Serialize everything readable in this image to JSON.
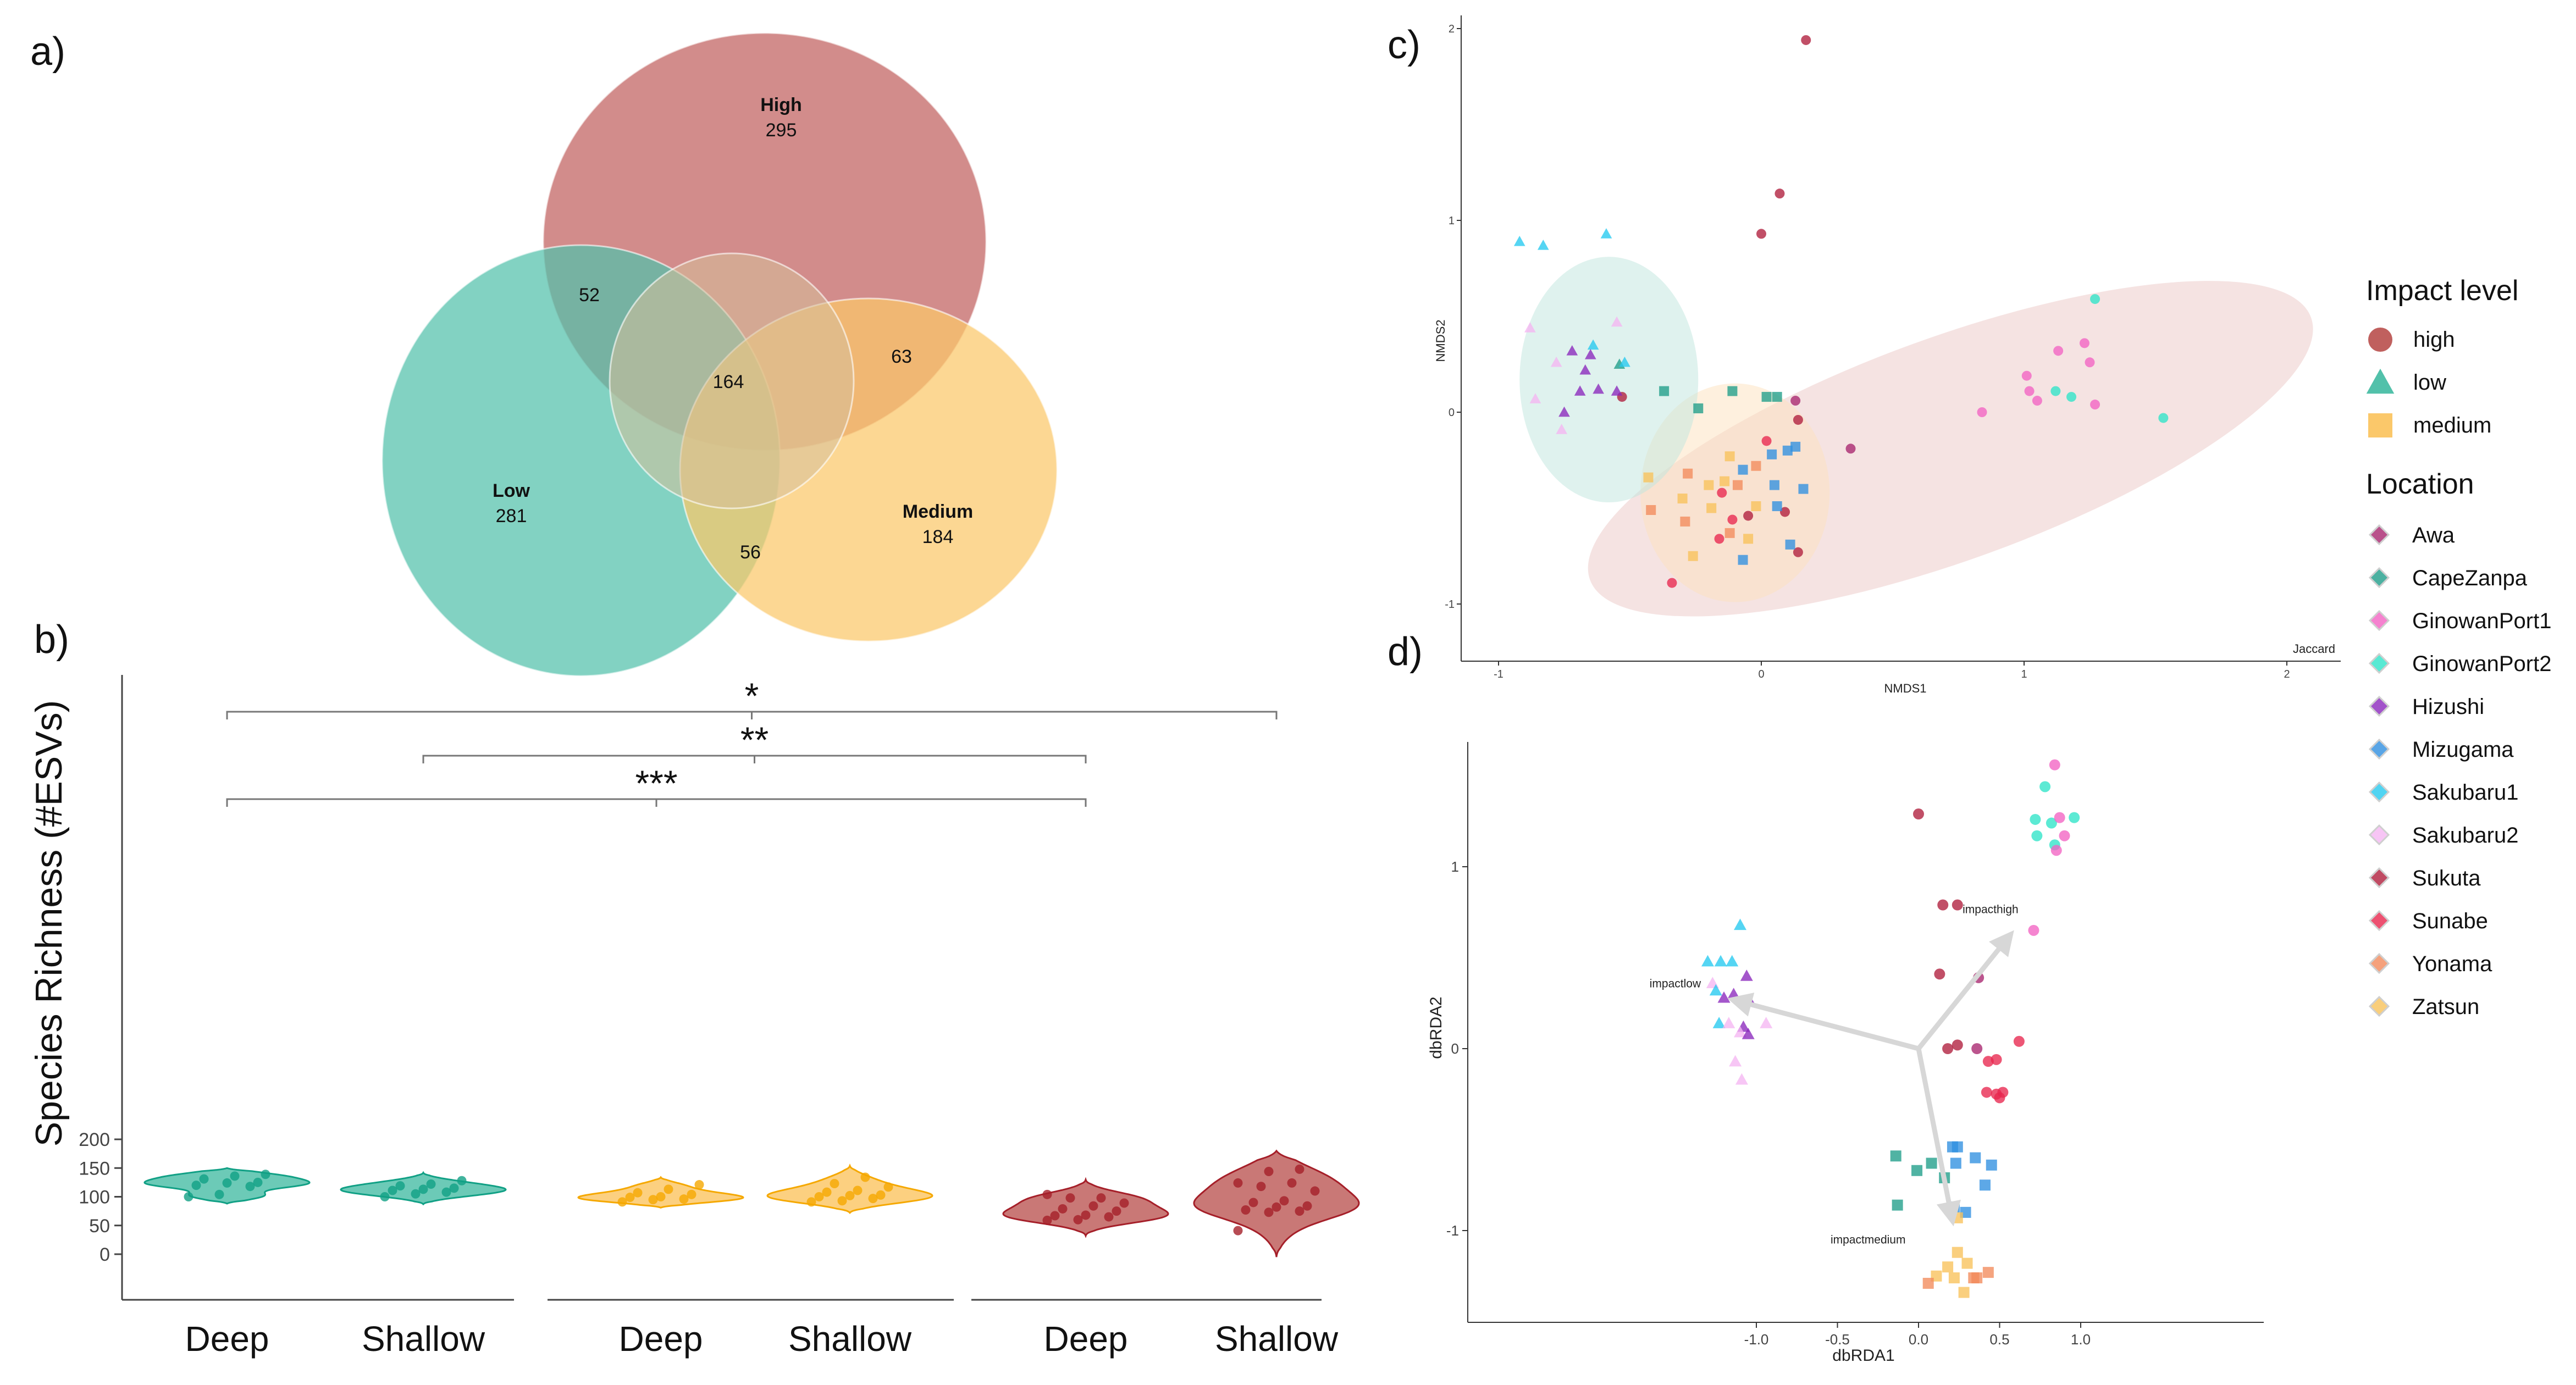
{
  "panels": {
    "a": "a)",
    "b": "b)",
    "c": "c)",
    "d": "d)"
  },
  "colors": {
    "high": "#c0605e",
    "low": "#52c1aa",
    "medium": "#fbc86a",
    "high_dark": "#a51f29",
    "low_dark": "#11a085",
    "medium_dark": "#f5a800"
  },
  "chart_data": [
    {
      "type": "venn",
      "sets": [
        {
          "name": "High",
          "value": "295",
          "color": "#c0605e"
        },
        {
          "name": "Low",
          "value": "281",
          "color": "#52c1aa"
        },
        {
          "name": "Medium",
          "value": "184",
          "color": "#fbc86a"
        }
      ],
      "intersections": {
        "High&Low": "52",
        "High&Medium": "63",
        "Low&Medium": "56",
        "High&Low&Medium": "164"
      }
    },
    {
      "type": "violin",
      "ylabel": "Species Richness (#ESVs)",
      "ylim": [
        0,
        200
      ],
      "yticks": [
        0,
        50,
        100,
        150,
        200
      ],
      "groups": [
        {
          "label": "Deep",
          "impact": "low",
          "range": [
            88,
            150
          ],
          "points": [
            100,
            104,
            118,
            120,
            124,
            125,
            131,
            136,
            139
          ]
        },
        {
          "label": "Shallow",
          "impact": "low",
          "range": [
            87,
            142
          ],
          "points": [
            100,
            105,
            108,
            111,
            113,
            115,
            119,
            122,
            128
          ]
        },
        {
          "label": "Deep",
          "impact": "medium",
          "range": [
            81,
            134
          ],
          "points": [
            91,
            95,
            96,
            99,
            100,
            104,
            107,
            113,
            121
          ]
        },
        {
          "label": "Shallow",
          "impact": "medium",
          "range": [
            72,
            154
          ],
          "points": [
            91,
            93,
            97,
            100,
            102,
            103,
            108,
            111,
            117,
            123,
            134
          ]
        },
        {
          "label": "Deep",
          "impact": "high",
          "range": [
            32,
            130
          ],
          "points": [
            59,
            60,
            65,
            67,
            68,
            75,
            79,
            84,
            89,
            98,
            98,
            104
          ]
        },
        {
          "label": "Shallow",
          "impact": "high",
          "range": [
            -5,
            180
          ],
          "points": [
            41,
            73,
            75,
            77,
            82,
            84,
            90,
            93,
            110,
            118,
            124,
            124,
            144,
            148
          ]
        }
      ],
      "significance": [
        {
          "label": "*",
          "from": 0,
          "to": 5
        },
        {
          "label": "**",
          "from": 1,
          "to": 4
        },
        {
          "label": "***",
          "from": 0,
          "to": 4
        }
      ]
    },
    {
      "type": "scatter",
      "method": "Jaccard",
      "xlabel": "NMDS1",
      "ylabel": "NMDS2",
      "xlim": [
        -1.15,
        2.2
      ],
      "ylim": [
        -1.2,
        2.05
      ],
      "xticks": [
        -1,
        0,
        1,
        2
      ],
      "yticks": [
        -1,
        0,
        1,
        2
      ],
      "ellipses": [
        {
          "impact": "low",
          "cx": -0.58,
          "cy": 0.17,
          "rx": 0.34,
          "ry": 0.64,
          "angle": 0
        },
        {
          "impact": "medium",
          "cx": -0.1,
          "cy": -0.42,
          "rx": 0.36,
          "ry": 0.57,
          "angle": 0
        },
        {
          "impact": "high",
          "cx": 0.72,
          "cy": -0.19,
          "rx": 1.46,
          "ry": 0.58,
          "angle": 20
        }
      ],
      "points": [
        [
          0.17,
          1.94,
          "high",
          "Sukuta"
        ],
        [
          0.07,
          1.14,
          "high",
          "Sukuta"
        ],
        [
          0.0,
          0.93,
          "high",
          "Sukuta"
        ],
        [
          -0.53,
          0.08,
          "high",
          "Sukuta"
        ],
        [
          0.13,
          0.06,
          "high",
          "Awa"
        ],
        [
          0.34,
          -0.19,
          "high",
          "Awa"
        ],
        [
          0.14,
          -0.04,
          "high",
          "Sukuta"
        ],
        [
          0.02,
          -0.15,
          "high",
          "Sunabe"
        ],
        [
          -0.15,
          -0.42,
          "high",
          "Sunabe"
        ],
        [
          -0.11,
          -0.56,
          "high",
          "Sunabe"
        ],
        [
          0.14,
          -0.73,
          "high",
          "Sukuta"
        ],
        [
          -0.05,
          -0.54,
          "high",
          "Sukuta"
        ],
        [
          -0.16,
          -0.66,
          "high",
          "Sunabe"
        ],
        [
          -0.34,
          -0.89,
          "high",
          "Sunabe"
        ],
        [
          0.09,
          -0.52,
          "high",
          "Sukuta"
        ],
        [
          1.27,
          0.59,
          "high",
          "GinowanPort2"
        ],
        [
          1.23,
          0.36,
          "high",
          "GinowanPort1"
        ],
        [
          1.13,
          0.32,
          "high",
          "GinowanPort1"
        ],
        [
          1.25,
          0.26,
          "high",
          "GinowanPort1"
        ],
        [
          1.01,
          0.19,
          "high",
          "GinowanPort1"
        ],
        [
          1.12,
          0.11,
          "high",
          "GinowanPort2"
        ],
        [
          1.02,
          0.11,
          "high",
          "GinowanPort1"
        ],
        [
          0.84,
          0.0,
          "high",
          "GinowanPort1"
        ],
        [
          1.05,
          0.06,
          "high",
          "GinowanPort1"
        ],
        [
          1.27,
          0.04,
          "high",
          "GinowanPort1"
        ],
        [
          1.18,
          0.08,
          "high",
          "GinowanPort2"
        ],
        [
          1.53,
          -0.03,
          "high",
          "GinowanPort2"
        ],
        [
          -0.92,
          0.89,
          "low",
          "Sakubaru1"
        ],
        [
          -0.83,
          0.87,
          "low",
          "Sakubaru1"
        ],
        [
          -0.59,
          0.93,
          "low",
          "Sakubaru1"
        ],
        [
          -0.88,
          0.44,
          "low",
          "Sakubaru2"
        ],
        [
          -0.64,
          0.35,
          "low",
          "Sakubaru1"
        ],
        [
          -0.72,
          0.32,
          "low",
          "Hizushi"
        ],
        [
          -0.65,
          0.3,
          "low",
          "Hizushi"
        ],
        [
          -0.55,
          0.47,
          "low",
          "Sakubaru2"
        ],
        [
          -0.54,
          0.25,
          "low",
          "CapeZanpa"
        ],
        [
          -0.67,
          0.22,
          "low",
          "Hizushi"
        ],
        [
          -0.78,
          0.26,
          "low",
          "Sakubaru2"
        ],
        [
          -0.52,
          0.26,
          "low",
          "Sakubaru1"
        ],
        [
          -0.62,
          0.12,
          "low",
          "Hizushi"
        ],
        [
          -0.86,
          0.07,
          "low",
          "Sakubaru2"
        ],
        [
          -0.69,
          0.11,
          "low",
          "Hizushi"
        ],
        [
          -0.55,
          0.11,
          "low",
          "Hizushi"
        ],
        [
          -0.75,
          0.0,
          "low",
          "Hizushi"
        ],
        [
          -0.76,
          -0.09,
          "low",
          "Sakubaru2"
        ],
        [
          -0.37,
          0.11,
          "medium",
          "CapeZanpa"
        ],
        [
          -0.11,
          0.11,
          "medium",
          "CapeZanpa"
        ],
        [
          0.02,
          0.08,
          "medium",
          "CapeZanpa"
        ],
        [
          0.06,
          0.08,
          "medium",
          "CapeZanpa"
        ],
        [
          -0.24,
          0.02,
          "medium",
          "CapeZanpa"
        ],
        [
          -0.12,
          -0.23,
          "medium",
          "Zatsun"
        ],
        [
          0.04,
          -0.22,
          "medium",
          "Mizugama"
        ],
        [
          0.1,
          -0.2,
          "medium",
          "Mizugama"
        ],
        [
          0.13,
          -0.18,
          "medium",
          "Mizugama"
        ],
        [
          -0.07,
          -0.3,
          "medium",
          "Mizugama"
        ],
        [
          -0.28,
          -0.32,
          "medium",
          "Yonama"
        ],
        [
          -0.43,
          -0.34,
          "medium",
          "Zatsun"
        ],
        [
          -0.2,
          -0.38,
          "medium",
          "Zatsun"
        ],
        [
          -0.02,
          -0.28,
          "medium",
          "Yonama"
        ],
        [
          -0.14,
          -0.36,
          "medium",
          "Zatsun"
        ],
        [
          -0.09,
          -0.38,
          "medium",
          "Yonama"
        ],
        [
          0.05,
          -0.38,
          "medium",
          "Mizugama"
        ],
        [
          0.16,
          -0.4,
          "medium",
          "Mizugama"
        ],
        [
          -0.3,
          -0.45,
          "medium",
          "Zatsun"
        ],
        [
          -0.02,
          -0.49,
          "medium",
          "Zatsun"
        ],
        [
          -0.19,
          -0.5,
          "medium",
          "Zatsun"
        ],
        [
          0.06,
          -0.49,
          "medium",
          "Mizugama"
        ],
        [
          -0.42,
          -0.51,
          "medium",
          "Yonama"
        ],
        [
          -0.29,
          -0.57,
          "medium",
          "Yonama"
        ],
        [
          -0.12,
          -0.63,
          "medium",
          "Yonama"
        ],
        [
          -0.05,
          -0.66,
          "medium",
          "Zatsun"
        ],
        [
          0.11,
          -0.69,
          "medium",
          "Mizugama"
        ],
        [
          -0.07,
          -0.77,
          "medium",
          "Mizugama"
        ],
        [
          -0.26,
          -0.75,
          "medium",
          "Zatsun"
        ]
      ]
    },
    {
      "type": "scatter",
      "xlabel": "dbRDA1",
      "ylabel": "dbRDA2",
      "xlim": [
        -1.4,
        1.07
      ],
      "ylim": [
        -1.5,
        1.7
      ],
      "xticks": [
        -1.0,
        -0.5,
        0.0,
        0.5,
        1.0
      ],
      "yticks": [
        -1,
        0,
        1
      ],
      "xtick_labels": [
        "-1.0",
        "-0.5",
        "0.0",
        "0.5",
        "1.0"
      ],
      "vectors": [
        {
          "label": "impacthigh",
          "x": 0.57,
          "y": 0.63
        },
        {
          "label": "impactlow",
          "x": -1.15,
          "y": 0.27
        },
        {
          "label": "impactmedium",
          "x": 0.21,
          "y": -0.95
        }
      ],
      "points": [
        [
          0.0,
          1.29,
          "high",
          "Sukuta"
        ],
        [
          0.15,
          0.79,
          "high",
          "Sukuta"
        ],
        [
          0.24,
          0.79,
          "high",
          "Sukuta"
        ],
        [
          0.71,
          0.65,
          "high",
          "GinowanPort1"
        ],
        [
          0.13,
          0.41,
          "high",
          "Sukuta"
        ],
        [
          0.37,
          0.39,
          "high",
          "Awa"
        ],
        [
          0.18,
          0.0,
          "high",
          "Sukuta"
        ],
        [
          0.24,
          0.02,
          "high",
          "Sukuta"
        ],
        [
          0.62,
          0.04,
          "high",
          "Sunabe"
        ],
        [
          0.36,
          0.0,
          "high",
          "Awa"
        ],
        [
          0.43,
          -0.07,
          "high",
          "Sunabe"
        ],
        [
          0.48,
          -0.06,
          "high",
          "Sunabe"
        ],
        [
          0.42,
          -0.24,
          "high",
          "Sunabe"
        ],
        [
          0.48,
          -0.25,
          "high",
          "Sunabe"
        ],
        [
          0.52,
          -0.24,
          "high",
          "Sunabe"
        ],
        [
          0.5,
          -0.27,
          "high",
          "Sunabe"
        ],
        [
          0.84,
          1.56,
          "high",
          "GinowanPort1"
        ],
        [
          0.78,
          1.44,
          "high",
          "GinowanPort2"
        ],
        [
          0.72,
          1.26,
          "high",
          "GinowanPort2"
        ],
        [
          0.82,
          1.24,
          "high",
          "GinowanPort2"
        ],
        [
          0.87,
          1.27,
          "high",
          "GinowanPort1"
        ],
        [
          0.96,
          1.27,
          "high",
          "GinowanPort2"
        ],
        [
          0.73,
          1.17,
          "high",
          "GinowanPort2"
        ],
        [
          0.84,
          1.12,
          "high",
          "GinowanPort2"
        ],
        [
          0.9,
          1.17,
          "high",
          "GinowanPort1"
        ],
        [
          0.85,
          1.09,
          "high",
          "GinowanPort1"
        ],
        [
          -1.22,
          0.48,
          "low",
          "Sakubaru1"
        ],
        [
          -1.15,
          0.48,
          "low",
          "Sakubaru1"
        ],
        [
          -1.1,
          0.68,
          "low",
          "Sakubaru1"
        ],
        [
          -1.3,
          0.48,
          "low",
          "Sakubaru1"
        ],
        [
          -1.06,
          0.4,
          "low",
          "Hizushi"
        ],
        [
          -1.27,
          0.36,
          "low",
          "Sakubaru2"
        ],
        [
          -1.2,
          0.28,
          "low",
          "Hizushi"
        ],
        [
          -1.25,
          0.32,
          "low",
          "Sakubaru1"
        ],
        [
          -1.14,
          0.3,
          "low",
          "Hizushi"
        ],
        [
          -1.04,
          0.26,
          "low",
          "Hizushi"
        ],
        [
          -1.08,
          0.12,
          "low",
          "Hizushi"
        ],
        [
          -1.23,
          0.14,
          "low",
          "Sakubaru1"
        ],
        [
          -1.17,
          0.14,
          "low",
          "Sakubaru2"
        ],
        [
          -0.94,
          0.14,
          "low",
          "Sakubaru2"
        ],
        [
          -1.1,
          0.09,
          "low",
          "Sakubaru2"
        ],
        [
          -1.05,
          0.08,
          "low",
          "Hizushi"
        ],
        [
          -1.13,
          -0.07,
          "low",
          "Sakubaru2"
        ],
        [
          -1.09,
          -0.17,
          "low",
          "Sakubaru2"
        ],
        [
          -0.14,
          -0.59,
          "medium",
          "CapeZanpa"
        ],
        [
          -0.01,
          -0.67,
          "medium",
          "CapeZanpa"
        ],
        [
          0.08,
          -0.63,
          "medium",
          "CapeZanpa"
        ],
        [
          0.16,
          -0.71,
          "medium",
          "CapeZanpa"
        ],
        [
          0.21,
          -0.54,
          "medium",
          "Mizugama"
        ],
        [
          0.24,
          -0.54,
          "medium",
          "Mizugama"
        ],
        [
          0.35,
          -0.6,
          "medium",
          "Mizugama"
        ],
        [
          0.45,
          -0.64,
          "medium",
          "Mizugama"
        ],
        [
          0.23,
          -0.63,
          "medium",
          "Mizugama"
        ],
        [
          0.41,
          -0.75,
          "medium",
          "Mizugama"
        ],
        [
          0.22,
          -0.87,
          "medium",
          "Mizugama"
        ],
        [
          0.29,
          -0.9,
          "medium",
          "Mizugama"
        ],
        [
          -0.13,
          -0.86,
          "medium",
          "CapeZanpa"
        ],
        [
          0.24,
          -0.93,
          "medium",
          "Zatsun"
        ],
        [
          0.24,
          -1.12,
          "medium",
          "Zatsun"
        ],
        [
          0.3,
          -1.18,
          "medium",
          "Zatsun"
        ],
        [
          0.11,
          -1.25,
          "medium",
          "Zatsun"
        ],
        [
          0.18,
          -1.2,
          "medium",
          "Zatsun"
        ],
        [
          0.06,
          -1.29,
          "medium",
          "Yonama"
        ],
        [
          0.22,
          -1.26,
          "medium",
          "Zatsun"
        ],
        [
          0.36,
          -1.26,
          "medium",
          "Yonama"
        ],
        [
          0.43,
          -1.23,
          "medium",
          "Yonama"
        ],
        [
          0.28,
          -1.34,
          "medium",
          "Zatsun"
        ],
        [
          0.34,
          -1.26,
          "medium",
          "Yonama"
        ]
      ]
    }
  ],
  "legend": {
    "impact_title": "Impact level",
    "impact_items": [
      {
        "label": "high",
        "shape": "circle",
        "color": "#c0605e"
      },
      {
        "label": "low",
        "shape": "triangle",
        "color": "#52c1aa"
      },
      {
        "label": "medium",
        "shape": "square",
        "color": "#fbc86a"
      }
    ],
    "location_title": "Location",
    "location_items": [
      {
        "label": "Awa",
        "color": "#a8256e"
      },
      {
        "label": "CapeZanpa",
        "color": "#1f9e89"
      },
      {
        "label": "GinowanPort1",
        "color": "#f263c3"
      },
      {
        "label": "GinowanPort2",
        "color": "#2ee4c8"
      },
      {
        "label": "Hizushi",
        "color": "#8b28bd"
      },
      {
        "label": "Mizugama",
        "color": "#2f8fe0"
      },
      {
        "label": "Sakubaru1",
        "color": "#25c9ef"
      },
      {
        "label": "Sakubaru2",
        "color": "#f5b6f2"
      },
      {
        "label": "Sukuta",
        "color": "#b01e3c"
      },
      {
        "label": "Sunabe",
        "color": "#e8264e"
      },
      {
        "label": "Yonama",
        "color": "#f28a5b"
      },
      {
        "label": "Zatsun",
        "color": "#f8c25a"
      }
    ]
  }
}
